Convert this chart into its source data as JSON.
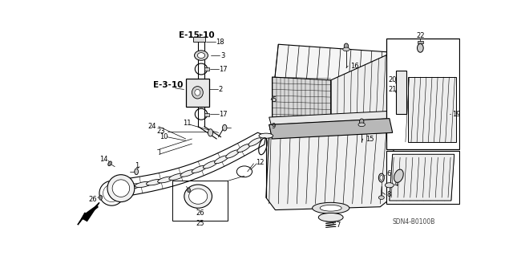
{
  "bg_color": "#ffffff",
  "line_color": "#000000",
  "diagram_code": "SDN4-B0100B",
  "lw_main": 1.0,
  "lw_thin": 0.5,
  "fs_label": 6.0,
  "fs_bold": 6.5
}
